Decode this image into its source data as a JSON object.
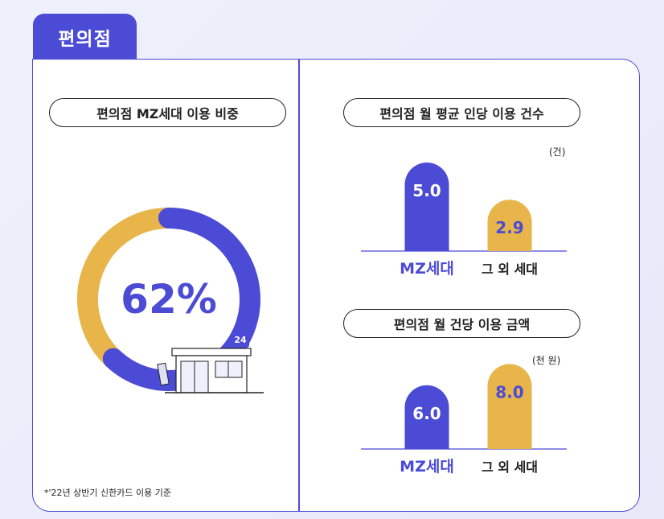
{
  "tab_label": "편의점",
  "left": {
    "pill": "편의점 MZ세대 이용 비중"
  },
  "right": {
    "chart1": {
      "pill": "편의점 월 평균 인당 이용 건수",
      "unit": "(건)"
    },
    "chart2": {
      "pill": "편의점 월 건당 이용 금액",
      "unit": "(천 원)"
    }
  },
  "store_sign": "24",
  "footnote": "*'22년 상반기 신한카드 이용 기준",
  "colors": {
    "primary": "#4b4bd6",
    "secondary": "#e8b54a"
  },
  "chart_data": [
    {
      "type": "pie",
      "title": "편의점 MZ세대 이용 비중",
      "center_label": "62%",
      "slices": [
        {
          "name": "MZ세대",
          "value": 62
        },
        {
          "name": "그 외 세대",
          "value": 38
        }
      ]
    },
    {
      "type": "bar",
      "title": "편의점 월 평균 인당 이용 건수",
      "unit": "(건)",
      "categories": [
        "MZ세대",
        "그 외 세대"
      ],
      "values": [
        5.0,
        2.9
      ],
      "value_labels": [
        "5.0",
        "2.9"
      ]
    },
    {
      "type": "bar",
      "title": "편의점 월 건당 이용 금액",
      "unit": "(천 원)",
      "categories": [
        "MZ세대",
        "그 외 세대"
      ],
      "values": [
        6.0,
        8.0
      ],
      "value_labels": [
        "6.0",
        "8.0"
      ]
    }
  ]
}
